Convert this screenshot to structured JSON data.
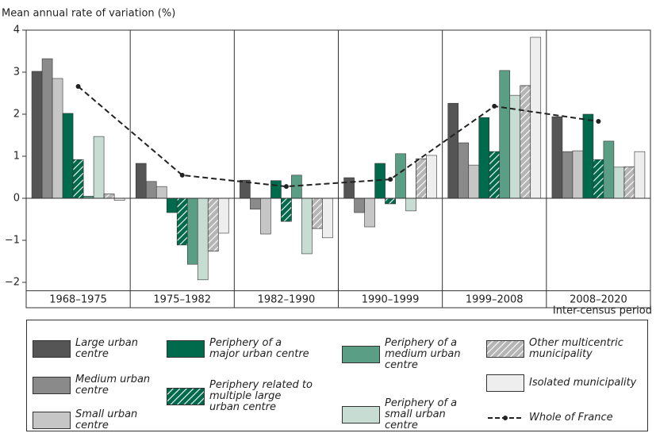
{
  "chart_data": {
    "type": "bar",
    "y_label": "Mean annual rate of variation (%)",
    "x_label": "Inter-census period",
    "categories": [
      "1968–1975",
      "1975–1982",
      "1982–1990",
      "1990–1999",
      "1999–2008",
      "2008–2020"
    ],
    "ylim": [
      -2.2,
      4
    ],
    "yticks": [
      {
        "value": -2,
        "label": "−2"
      },
      {
        "value": -1,
        "label": "−1"
      },
      0,
      1,
      2,
      3,
      4
    ],
    "zero_line": true,
    "series": [
      {
        "name": "Large urban centre",
        "color": "#555555",
        "values": [
          3.02,
          0.83,
          0.43,
          0.49,
          2.26,
          1.94
        ]
      },
      {
        "name": "Medium urban centre",
        "color": "#8a8a8a",
        "values": [
          3.32,
          0.4,
          -0.26,
          -0.34,
          1.32,
          1.11
        ]
      },
      {
        "name": "Small urban centre",
        "color": "#c6c6c6",
        "values": [
          2.85,
          0.28,
          -0.85,
          -0.68,
          0.79,
          1.13
        ]
      },
      {
        "name": "Periphery of a major urban centre",
        "color": "#006b4c",
        "values": [
          2.02,
          -0.34,
          0.42,
          0.83,
          1.92,
          2.0
        ]
      },
      {
        "name": "Periphery related to multiple large urban centre",
        "color": "#006b4c",
        "pattern": "hatch",
        "values": [
          0.92,
          -1.11,
          -0.55,
          -0.13,
          1.11,
          0.92
        ]
      },
      {
        "name": "Periphery of a medium urban centre",
        "color": "#5b9e86",
        "values": [
          0.05,
          -1.57,
          0.55,
          1.06,
          3.04,
          1.36
        ]
      },
      {
        "name": "Periphery of a small urban centre",
        "color": "#c7ddd4",
        "values": [
          1.47,
          -1.94,
          -1.32,
          -0.3,
          2.45,
          0.74
        ]
      },
      {
        "name": "Other multicentric municipality",
        "color": "#b5b5b5",
        "pattern": "hatch",
        "values": [
          0.1,
          -1.26,
          -0.72,
          0.94,
          2.68,
          0.75
        ]
      },
      {
        "name": "Isolated municipality",
        "color": "#eeeeee",
        "values": [
          -0.05,
          -0.83,
          -0.94,
          1.02,
          3.83,
          1.11
        ]
      },
      {
        "name": "Whole of France",
        "type": "line",
        "color": "#222222",
        "dashed": true,
        "values": [
          2.66,
          0.55,
          0.28,
          0.45,
          2.19,
          1.83
        ]
      }
    ]
  }
}
